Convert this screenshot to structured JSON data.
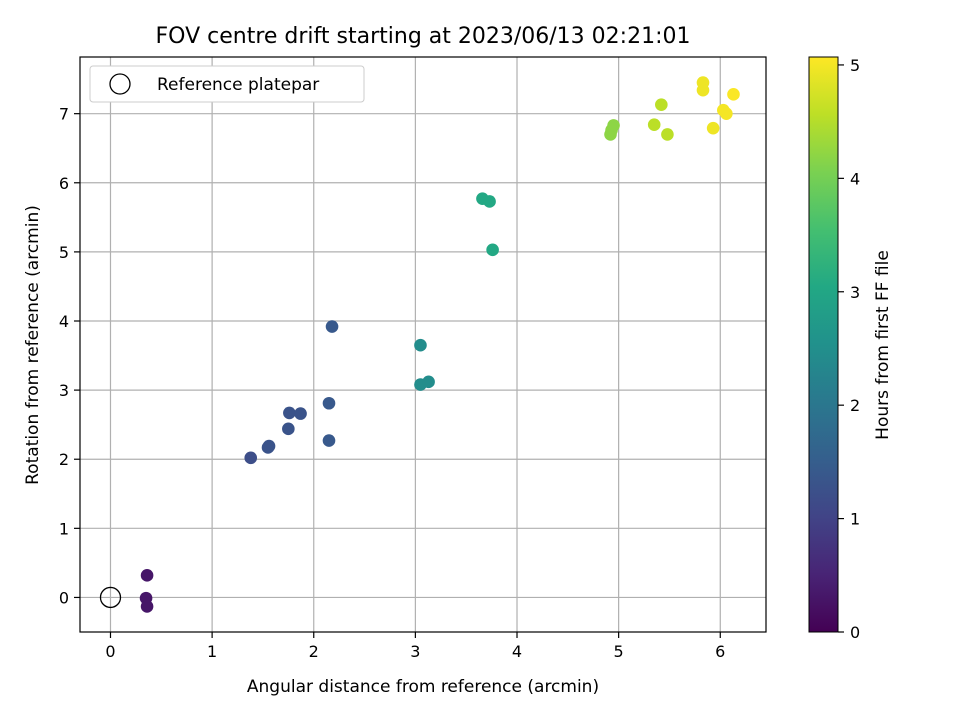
{
  "chart_data": {
    "type": "scatter",
    "title": "FOV centre drift starting at 2023/06/13 02:21:01",
    "xlabel": "Angular distance from reference (arcmin)",
    "ylabel": "Rotation from reference (arcmin)",
    "xlim": [
      -0.3,
      6.45
    ],
    "ylim": [
      -0.5,
      7.82
    ],
    "xticks": [
      0,
      1,
      2,
      3,
      4,
      5,
      6
    ],
    "yticks": [
      0,
      1,
      2,
      3,
      4,
      5,
      6,
      7
    ],
    "grid": true,
    "legend": {
      "position": "top-left",
      "entries": [
        "Reference platepar"
      ]
    },
    "reference_point": {
      "x": 0,
      "y": 0
    },
    "colorbar": {
      "label": "Hours from first FF file",
      "range": [
        0,
        5.07
      ],
      "ticks": [
        0,
        1,
        2,
        3,
        4,
        5
      ],
      "colormap": "viridis"
    },
    "points": [
      {
        "x": 0.36,
        "y": 0.32,
        "c": 0.3
      },
      {
        "x": 0.35,
        "y": -0.01,
        "c": 0.3
      },
      {
        "x": 0.36,
        "y": -0.13,
        "c": 0.3
      },
      {
        "x": 1.38,
        "y": 2.02,
        "c": 1.2
      },
      {
        "x": 1.55,
        "y": 2.17,
        "c": 1.3
      },
      {
        "x": 1.56,
        "y": 2.19,
        "c": 1.3
      },
      {
        "x": 1.75,
        "y": 2.44,
        "c": 1.3
      },
      {
        "x": 1.76,
        "y": 2.67,
        "c": 1.3
      },
      {
        "x": 1.87,
        "y": 2.66,
        "c": 1.3
      },
      {
        "x": 2.15,
        "y": 2.27,
        "c": 1.4
      },
      {
        "x": 2.15,
        "y": 2.81,
        "c": 1.4
      },
      {
        "x": 2.18,
        "y": 3.92,
        "c": 1.4
      },
      {
        "x": 3.05,
        "y": 3.65,
        "c": 2.45
      },
      {
        "x": 3.05,
        "y": 3.08,
        "c": 2.45
      },
      {
        "x": 3.13,
        "y": 3.12,
        "c": 2.45
      },
      {
        "x": 3.66,
        "y": 5.77,
        "c": 3.05
      },
      {
        "x": 3.73,
        "y": 5.73,
        "c": 3.05
      },
      {
        "x": 3.76,
        "y": 5.03,
        "c": 3.05
      },
      {
        "x": 4.92,
        "y": 6.7,
        "c": 4.2
      },
      {
        "x": 4.93,
        "y": 6.76,
        "c": 4.2
      },
      {
        "x": 4.95,
        "y": 6.83,
        "c": 4.2
      },
      {
        "x": 5.35,
        "y": 6.84,
        "c": 4.55
      },
      {
        "x": 5.42,
        "y": 7.13,
        "c": 4.55
      },
      {
        "x": 5.48,
        "y": 6.7,
        "c": 4.55
      },
      {
        "x": 5.83,
        "y": 7.45,
        "c": 4.95
      },
      {
        "x": 5.83,
        "y": 7.34,
        "c": 4.95
      },
      {
        "x": 5.93,
        "y": 6.79,
        "c": 4.95
      },
      {
        "x": 6.03,
        "y": 7.05,
        "c": 5.0
      },
      {
        "x": 6.06,
        "y": 7.0,
        "c": 5.0
      },
      {
        "x": 6.13,
        "y": 7.28,
        "c": 5.05
      }
    ]
  }
}
